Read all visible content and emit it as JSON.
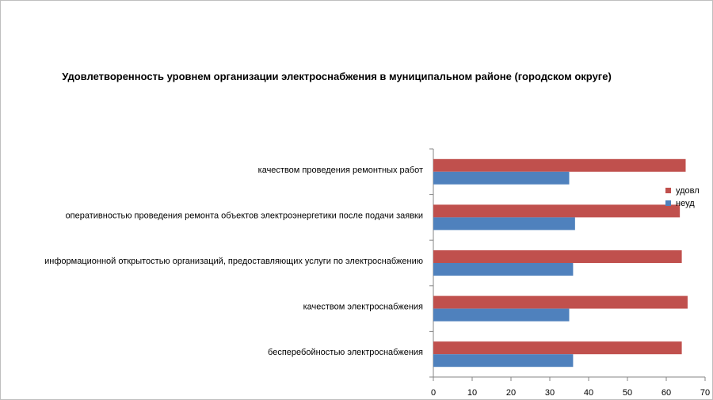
{
  "chart_data": {
    "type": "bar",
    "orientation": "horizontal",
    "title": "Удовлетворенность уровнем организации электроснабжения в муниципальном районе (городском округе)",
    "categories": [
      "качеством проведения ремонтных работ",
      "оперативностью проведения ремонта объектов электроэнергетики после подачи заявки",
      "информационной открытостью организаций, предоставляющих услуги по электроснабжению",
      "качеством электроснабжения",
      "бесперебойностью электроснабжения"
    ],
    "series": [
      {
        "name": "удовл",
        "color": "#c0504d",
        "values": [
          65,
          63.5,
          64,
          65.5,
          64
        ]
      },
      {
        "name": "неуд",
        "color": "#4f81bd",
        "values": [
          35,
          36.5,
          36,
          35,
          36
        ]
      }
    ],
    "xlim": [
      0,
      70
    ],
    "xticks": [
      0,
      10,
      20,
      30,
      40,
      50,
      60,
      70
    ],
    "grid": false,
    "legend": "right"
  }
}
